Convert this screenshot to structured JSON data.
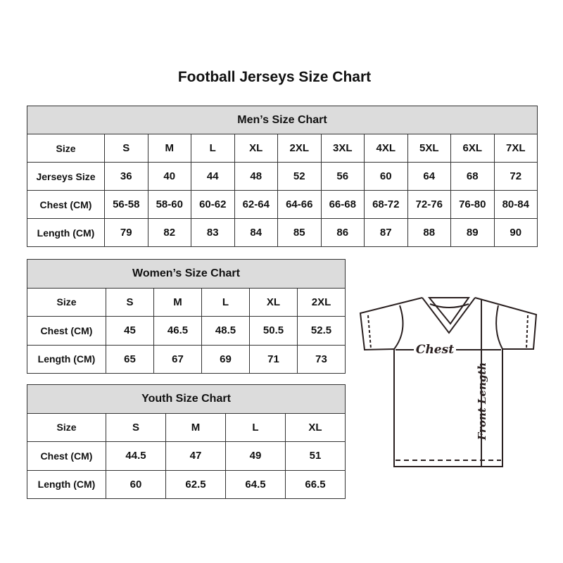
{
  "title": "Football Jerseys Size Chart",
  "men": {
    "title": "Men’s Size Chart",
    "rows": [
      [
        "Size",
        "S",
        "M",
        "L",
        "XL",
        "2XL",
        "3XL",
        "4XL",
        "5XL",
        "6XL",
        "7XL"
      ],
      [
        "Jerseys Size",
        "36",
        "40",
        "44",
        "48",
        "52",
        "56",
        "60",
        "64",
        "68",
        "72"
      ],
      [
        "Chest (CM)",
        "56-58",
        "58-60",
        "60-62",
        "62-64",
        "64-66",
        "66-68",
        "68-72",
        "72-76",
        "76-80",
        "80-84"
      ],
      [
        "Length (CM)",
        "79",
        "82",
        "83",
        "84",
        "85",
        "86",
        "87",
        "88",
        "89",
        "90"
      ]
    ]
  },
  "women": {
    "title": "Women’s Size Chart",
    "rows": [
      [
        "Size",
        "S",
        "M",
        "L",
        "XL",
        "2XL"
      ],
      [
        "Chest (CM)",
        "45",
        "46.5",
        "48.5",
        "50.5",
        "52.5"
      ],
      [
        "Length (CM)",
        "65",
        "67",
        "69",
        "71",
        "73"
      ]
    ]
  },
  "youth": {
    "title": "Youth Size Chart",
    "rows": [
      [
        "Size",
        "S",
        "M",
        "L",
        "XL"
      ],
      [
        "Chest (CM)",
        "44.5",
        "47",
        "49",
        "51"
      ],
      [
        "Length (CM)",
        "60",
        "62.5",
        "64.5",
        "66.5"
      ]
    ]
  },
  "diagram": {
    "chest_label": "Chest",
    "length_label": "Front Length"
  }
}
